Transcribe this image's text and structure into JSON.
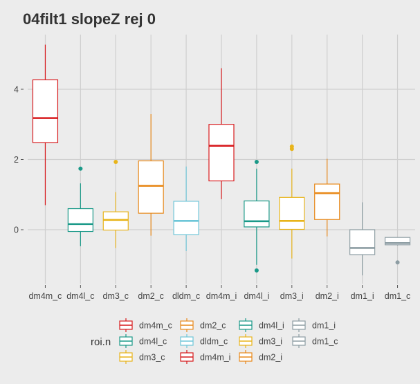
{
  "chart_data": {
    "type": "boxplot",
    "title": "04filt1 slopeZ rej 0",
    "xlabel": "",
    "ylabel": "",
    "ylim": [
      -1.9,
      5.6
    ],
    "y_ticks": [
      0,
      2,
      4
    ],
    "grid": true,
    "legend": {
      "title": "roi.n",
      "position": "bottom",
      "entries": [
        {
          "label": "dm4m_c",
          "color": "#d7191c"
        },
        {
          "label": "dm4l_c",
          "color": "#1a9988"
        },
        {
          "label": "dm3_c",
          "color": "#e8b41a"
        },
        {
          "label": "dm2_c",
          "color": "#e8891a"
        },
        {
          "label": "dldm_c",
          "color": "#6ec6d8"
        },
        {
          "label": "dm4m_i",
          "color": "#d7191c"
        },
        {
          "label": "dm4l_i",
          "color": "#1a9988"
        },
        {
          "label": "dm3_i",
          "color": "#e8b41a"
        },
        {
          "label": "dm2_i",
          "color": "#e8891a"
        },
        {
          "label": "dm1_i",
          "color": "#8d9da3"
        },
        {
          "label": "dm1_c",
          "color": "#8d9da3"
        }
      ]
    },
    "categories": [
      "dm4m_c",
      "dm4l_c",
      "dm3_c",
      "dm2_c",
      "dldm_c",
      "dm4m_i",
      "dm4l_i",
      "dm3_i",
      "dm2_i",
      "dm1_i",
      "dm1_c"
    ],
    "boxes": [
      {
        "category": "dm4m_c",
        "color": "#d7191c",
        "min": 0.7,
        "q1": 2.48,
        "median": 3.18,
        "q3": 4.27,
        "max": 5.27,
        "outliers": []
      },
      {
        "category": "dm4l_c",
        "color": "#1a9988",
        "min": -0.47,
        "q1": -0.05,
        "median": 0.16,
        "q3": 0.6,
        "max": 1.32,
        "outliers": [
          1.74
        ]
      },
      {
        "category": "dm3_c",
        "color": "#e8b41a",
        "min": -0.52,
        "q1": -0.01,
        "median": 0.28,
        "q3": 0.51,
        "max": 1.07,
        "outliers": [
          1.93
        ]
      },
      {
        "category": "dm2_c",
        "color": "#e8891a",
        "min": -0.17,
        "q1": 0.47,
        "median": 1.25,
        "q3": 1.96,
        "max": 3.29,
        "outliers": []
      },
      {
        "category": "dldm_c",
        "color": "#6ec6d8",
        "min": -0.61,
        "q1": -0.14,
        "median": 0.25,
        "q3": 0.81,
        "max": 1.8,
        "outliers": []
      },
      {
        "category": "dm4m_i",
        "color": "#d7191c",
        "min": 0.87,
        "q1": 1.39,
        "median": 2.39,
        "q3": 3.0,
        "max": 4.6,
        "outliers": []
      },
      {
        "category": "dm4l_i",
        "color": "#1a9988",
        "min": -1.0,
        "q1": 0.08,
        "median": 0.24,
        "q3": 0.82,
        "max": 1.74,
        "outliers": [
          1.93,
          -1.16
        ]
      },
      {
        "category": "dm3_i",
        "color": "#e8b41a",
        "min": -0.82,
        "q1": 0.01,
        "median": 0.25,
        "q3": 0.92,
        "max": 1.74,
        "outliers": [
          2.3,
          2.37
        ]
      },
      {
        "category": "dm2_i",
        "color": "#e8891a",
        "min": -0.19,
        "q1": 0.29,
        "median": 1.04,
        "q3": 1.3,
        "max": 2.02,
        "outliers": []
      },
      {
        "category": "dm1_i",
        "color": "#8d9da3",
        "min": -1.3,
        "q1": -0.71,
        "median": -0.52,
        "q3": 0.0,
        "max": 0.78,
        "outliers": []
      },
      {
        "category": "dm1_c",
        "color": "#8d9da3",
        "min": -0.45,
        "q1": -0.43,
        "median": -0.38,
        "q3": -0.22,
        "max": -0.22,
        "outliers": [
          -0.93
        ]
      }
    ]
  }
}
